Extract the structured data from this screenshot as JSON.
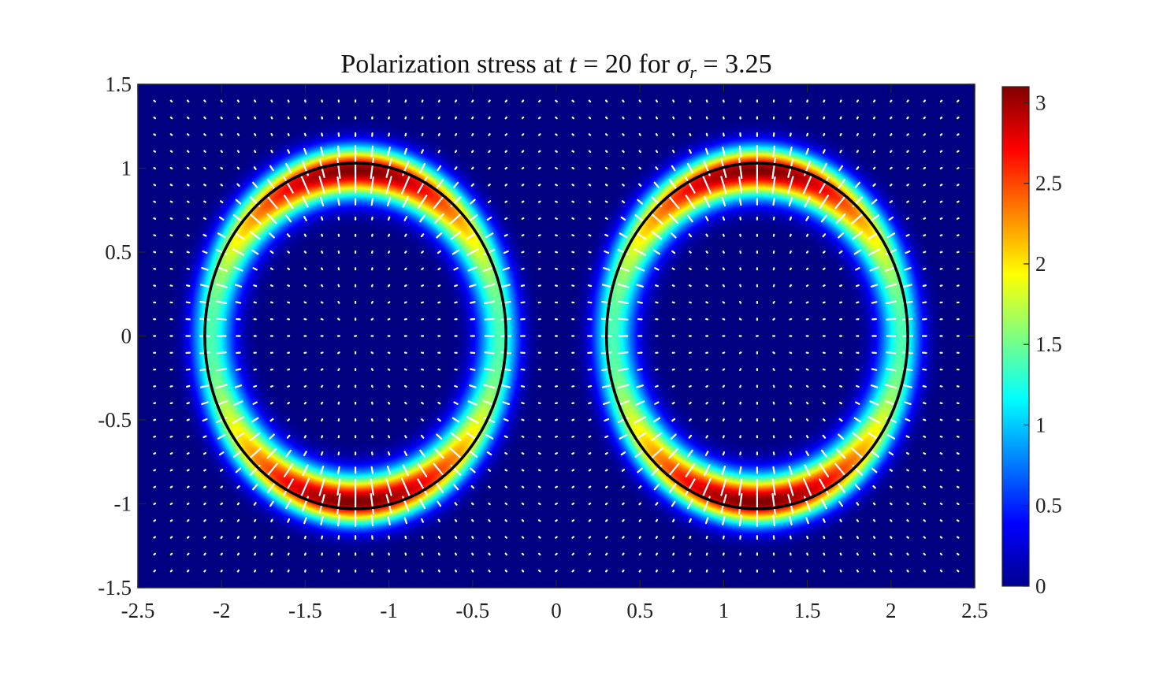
{
  "chart_data": {
    "type": "heatmap",
    "title": {
      "prefix": "Polarization stress at ",
      "t_symbol": "t",
      "t_eq": " = 20 for ",
      "sigma_symbol": "σ",
      "sigma_sub": "r",
      "sigma_eq": " = 3.25"
    },
    "xlabel": "",
    "ylabel": "",
    "xlim": [
      -2.5,
      2.5
    ],
    "ylim": [
      -1.5,
      1.5
    ],
    "x_ticks": [
      "-2.5",
      "-2",
      "-1.5",
      "-1",
      "-0.5",
      "0",
      "0.5",
      "1",
      "1.5",
      "2",
      "2.5"
    ],
    "y_ticks": [
      "1.5",
      "1",
      "0.5",
      "0",
      "-0.5",
      "-1",
      "-1.5"
    ],
    "colorbar": {
      "colormap": "jet",
      "range": [
        0,
        3.1
      ],
      "ticks": [
        "3",
        "2.5",
        "2",
        "1.5",
        "1",
        "0.5",
        "0"
      ]
    },
    "overlays": {
      "ellipses": [
        {
          "center": [
            -1.2,
            0.0
          ],
          "semi_axes": [
            0.9,
            1.03
          ],
          "color": "#000000"
        },
        {
          "center": [
            1.2,
            0.0
          ],
          "semi_axes": [
            0.9,
            1.03
          ],
          "color": "#000000"
        }
      ],
      "quiver": {
        "color": "#ffffff",
        "direction": "radial",
        "grid_spacing": [
          0.1,
          0.1
        ]
      }
    },
    "field": {
      "peak_value": 3.1,
      "max_at": "top and bottom of each ellipse",
      "side_value": 1.4
    },
    "grid": false
  }
}
